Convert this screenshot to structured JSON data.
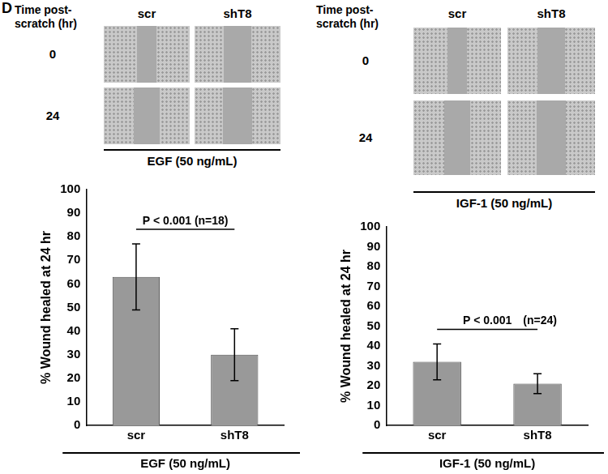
{
  "panel_label": "D",
  "micrographs": [
    {
      "time_header": "Time post-scratch (hr)",
      "columns": [
        "scr",
        "shT8"
      ],
      "rows": [
        "0",
        "24"
      ],
      "treatment": "EGF (50 ng/mL)"
    },
    {
      "time_header": "Time post-scratch (hr)",
      "columns": [
        "scr",
        "shT8"
      ],
      "rows": [
        "0",
        "24"
      ],
      "treatment": "IGF-1 (50 ng/mL)"
    }
  ],
  "chart_data": [
    {
      "type": "bar",
      "y_label": "% Wound healed at 24 hr",
      "x_label": "EGF (50 ng/mL)",
      "categories": [
        "scr",
        "shT8"
      ],
      "values": [
        63,
        30
      ],
      "errors": [
        14,
        11
      ],
      "color": "#999999",
      "ylim": [
        0,
        100
      ],
      "yticks": [
        0,
        10,
        20,
        30,
        40,
        50,
        60,
        70,
        80,
        90,
        100
      ],
      "grid": false,
      "annotations": [
        "P < 0.001 (n=18)"
      ]
    },
    {
      "type": "bar",
      "y_label": "% Wound healed at 24 hr",
      "x_label": "IGF-1 (50 ng/mL)",
      "categories": [
        "scr",
        "shT8"
      ],
      "values": [
        32,
        21
      ],
      "errors": [
        9,
        5
      ],
      "color": "#999999",
      "ylim": [
        0,
        100
      ],
      "yticks": [
        0,
        10,
        20,
        30,
        40,
        50,
        60,
        70,
        80,
        90,
        100
      ],
      "grid": false,
      "annotations": [
        "P < 0.001",
        "(n=24)"
      ]
    }
  ]
}
